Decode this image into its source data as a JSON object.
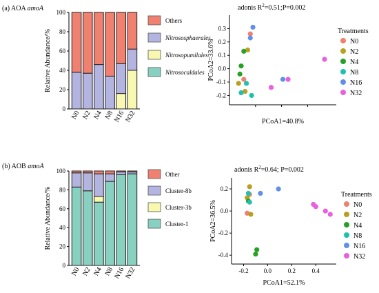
{
  "panels": [
    {
      "id": "a",
      "label_prefix": "(a) AOA ",
      "label_gene": "amoA",
      "stacked": {
        "ylabel": "Relative Abundance/%",
        "ylim": [
          0,
          100
        ],
        "yticks": [
          0,
          20,
          40,
          60,
          80,
          100
        ],
        "categories": [
          "N0",
          "N2",
          "N4",
          "N8",
          "N16",
          "N32"
        ],
        "legend": [
          {
            "name": "Others",
            "italic": false,
            "color": "#f08070"
          },
          {
            "name": "Nitrososphaerales",
            "italic": true,
            "color": "#b4b4e0"
          },
          {
            "name": "Nitrosopumilales",
            "italic": true,
            "color": "#f8f8b0"
          },
          {
            "name": "Nitrosocaldales",
            "italic": true,
            "color": "#88d0c0"
          }
        ]
      },
      "pcoa": {
        "title_prefix": "adonis R",
        "title_suffix": "=0.51;P=0.002",
        "xlabel": "PCoA1=40.8%",
        "ylabel": "PCoA2=33.6%",
        "xlim": [
          -0.2,
          0.62
        ],
        "ylim": [
          -0.27,
          0.4
        ],
        "xticks": [
          0.0,
          0.2,
          0.4
        ],
        "yticks": [
          -0.2,
          -0.1,
          0.0,
          0.1,
          0.2,
          0.3
        ],
        "show_x_tick_labels": false,
        "legend_title": "Treatments",
        "groups": [
          {
            "name": "N0",
            "color": "#f08070"
          },
          {
            "name": "N2",
            "color": "#b8a020"
          },
          {
            "name": "N4",
            "color": "#28a028"
          },
          {
            "name": "N8",
            "color": "#20c0b0"
          },
          {
            "name": "N16",
            "color": "#6090e8"
          },
          {
            "name": "N32",
            "color": "#e860e0"
          }
        ]
      }
    },
    {
      "id": "b",
      "label_prefix": "(b) AOB ",
      "label_gene": "amoA",
      "stacked": {
        "ylabel": "Relative Abundance/%",
        "ylim": [
          0,
          100
        ],
        "yticks": [
          0,
          20,
          40,
          60,
          80,
          100
        ],
        "categories": [
          "N0",
          "N2",
          "N4",
          "N8",
          "N16",
          "N32"
        ],
        "legend": [
          {
            "name": "Other",
            "italic": false,
            "color": "#f08070"
          },
          {
            "name": "Cluster-8b",
            "italic": false,
            "color": "#b4b4e0"
          },
          {
            "name": "Cluster-3b",
            "italic": false,
            "color": "#f8f8b0"
          },
          {
            "name": "Cluster-1",
            "italic": false,
            "color": "#88d0c0"
          }
        ]
      },
      "pcoa": {
        "title_prefix": "adonis R",
        "title_suffix": "=0.64; P=0.002",
        "xlabel": "PCoA1=52.1%",
        "ylabel": "PCoA2=36.5%",
        "xlim": [
          -0.3,
          0.57
        ],
        "ylim": [
          -0.48,
          0.3
        ],
        "xticks": [
          -0.2,
          0.0,
          0.2,
          0.4
        ],
        "yticks": [
          -0.4,
          -0.2,
          0.0,
          0.2
        ],
        "show_x_tick_labels": true,
        "legend_title": "Treatments",
        "groups": [
          {
            "name": "N0",
            "color": "#f08070"
          },
          {
            "name": "N2",
            "color": "#b8a020"
          },
          {
            "name": "N4",
            "color": "#28a028"
          },
          {
            "name": "N8",
            "color": "#20c0b0"
          },
          {
            "name": "N16",
            "color": "#6090e8"
          },
          {
            "name": "N32",
            "color": "#e860e0"
          }
        ]
      }
    }
  ],
  "chart_data": [
    {
      "type": "bar",
      "stacked": true,
      "categories": [
        "N0",
        "N2",
        "N4",
        "N8",
        "N16",
        "N32"
      ],
      "ylabel": "Relative Abundance/%",
      "ylim": [
        0,
        100
      ],
      "series": [
        {
          "name": "Nitrosocaldales",
          "values": [
            0,
            0,
            0,
            0,
            0,
            0
          ]
        },
        {
          "name": "Nitrosopumilales",
          "values": [
            0,
            0,
            0,
            0,
            16,
            40
          ]
        },
        {
          "name": "Nitrososphaerales",
          "values": [
            38,
            37,
            46,
            34,
            31,
            22
          ]
        },
        {
          "name": "Others",
          "values": [
            62,
            63,
            54,
            66,
            53,
            38
          ]
        }
      ]
    },
    {
      "type": "scatter",
      "title": "adonis R²=0.51;P=0.002",
      "xlabel": "PCoA1=40.8%",
      "ylabel": "PCoA2=33.6%",
      "xlim": [
        -0.2,
        0.62
      ],
      "ylim": [
        -0.27,
        0.4
      ],
      "series": [
        {
          "name": "N0",
          "points": [
            [
              -0.04,
              0.26
            ],
            [
              -0.09,
              -0.08
            ]
          ]
        },
        {
          "name": "N2",
          "points": [
            [
              -0.13,
              -0.11
            ],
            [
              -0.08,
              -0.17
            ],
            [
              -0.06,
              0.14
            ]
          ]
        },
        {
          "name": "N4",
          "points": [
            [
              -0.09,
              0.13
            ],
            [
              -0.11,
              0.02
            ],
            [
              -0.12,
              -0.04
            ]
          ]
        },
        {
          "name": "N8",
          "points": [
            [
              -0.11,
              -0.18
            ],
            [
              -0.03,
              -0.2
            ],
            [
              -0.07,
              -0.11
            ]
          ]
        },
        {
          "name": "N16",
          "points": [
            [
              -0.02,
              0.31
            ],
            [
              -0.04,
              0.23
            ],
            [
              0.21,
              -0.08
            ]
          ]
        },
        {
          "name": "N32",
          "points": [
            [
              0.53,
              0.07
            ],
            [
              0.25,
              -0.08
            ],
            [
              0.12,
              -0.14
            ]
          ]
        }
      ]
    },
    {
      "type": "bar",
      "stacked": true,
      "categories": [
        "N0",
        "N2",
        "N4",
        "N8",
        "N16",
        "N32"
      ],
      "ylabel": "Relative Abundance/%",
      "ylim": [
        0,
        100
      ],
      "series": [
        {
          "name": "Cluster-1",
          "values": [
            83,
            79,
            67,
            89,
            96,
            97
          ]
        },
        {
          "name": "Cluster-3b",
          "values": [
            0,
            0,
            6,
            0,
            0,
            0
          ]
        },
        {
          "name": "Cluster-8b",
          "values": [
            15,
            19,
            24,
            8,
            3,
            2
          ]
        },
        {
          "name": "Other",
          "values": [
            2,
            2,
            3,
            3,
            1,
            1
          ]
        }
      ]
    },
    {
      "type": "scatter",
      "title": "adonis R²=0.64; P=0.002",
      "xlabel": "PCoA1=52.1%",
      "ylabel": "PCoA2=36.5%",
      "xlim": [
        -0.3,
        0.57
      ],
      "ylim": [
        -0.48,
        0.3
      ],
      "series": [
        {
          "name": "N0",
          "points": [
            [
              -0.17,
              -0.02
            ],
            [
              -0.15,
              0.15
            ]
          ]
        },
        {
          "name": "N2",
          "points": [
            [
              -0.15,
              0.22
            ],
            [
              -0.17,
              0.12
            ],
            [
              -0.14,
              -0.03
            ]
          ]
        },
        {
          "name": "N4",
          "points": [
            [
              -0.09,
              -0.35
            ],
            [
              -0.1,
              -0.39
            ],
            [
              -0.16,
              0.09
            ]
          ]
        },
        {
          "name": "N8",
          "points": [
            [
              -0.16,
              0.16
            ],
            [
              -0.15,
              0.08
            ]
          ]
        },
        {
          "name": "N16",
          "points": [
            [
              -0.06,
              0.16
            ],
            [
              0.09,
              0.2
            ]
          ]
        },
        {
          "name": "N32",
          "points": [
            [
              0.38,
              0.06
            ],
            [
              0.4,
              0.04
            ],
            [
              0.48,
              0.0
            ],
            [
              0.52,
              -0.03
            ]
          ]
        }
      ]
    }
  ]
}
